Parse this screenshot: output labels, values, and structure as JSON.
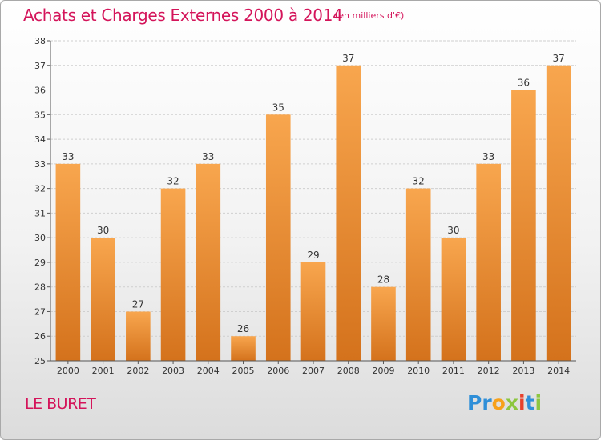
{
  "title": "Achats et Charges Externes 2000 à 2014",
  "unit": "(en milliers d'€)",
  "commune": "LE BURET",
  "logo": {
    "letters": [
      {
        "ch": "P",
        "color": "#2f8fd8"
      },
      {
        "ch": "r",
        "color": "#2f8fd8"
      },
      {
        "ch": "o",
        "color": "#f7a11a"
      },
      {
        "ch": "x",
        "color": "#8cc63f"
      },
      {
        "ch": "i",
        "color": "#e8412c"
      },
      {
        "ch": "t",
        "color": "#2f8fd8"
      },
      {
        "ch": "i",
        "color": "#8cc63f"
      }
    ]
  },
  "colors": {
    "bar_top": "#f8a64e",
    "bar_bottom": "#d4721c",
    "accent": "#d4145a",
    "grid": "#cfcfcf",
    "axis": "#555555"
  },
  "chart_data": {
    "type": "bar",
    "categories": [
      "2000",
      "2001",
      "2002",
      "2003",
      "2004",
      "2005",
      "2006",
      "2007",
      "2008",
      "2009",
      "2010",
      "2011",
      "2012",
      "2013",
      "2014"
    ],
    "values": [
      33,
      30,
      27,
      32,
      33,
      26,
      35,
      29,
      37,
      28,
      32,
      30,
      33,
      36,
      37
    ],
    "data_labels": [
      "33",
      "30",
      "27",
      "32",
      "33",
      "26",
      "35",
      "29",
      "37",
      "28",
      "32",
      "30",
      "33",
      "36",
      "37"
    ],
    "ylim": [
      25,
      38
    ],
    "yticks": [
      "25",
      "26",
      "27",
      "28",
      "29",
      "30",
      "31",
      "32",
      "33",
      "34",
      "35",
      "36",
      "37",
      "38"
    ],
    "grid": true,
    "legend": "none"
  }
}
